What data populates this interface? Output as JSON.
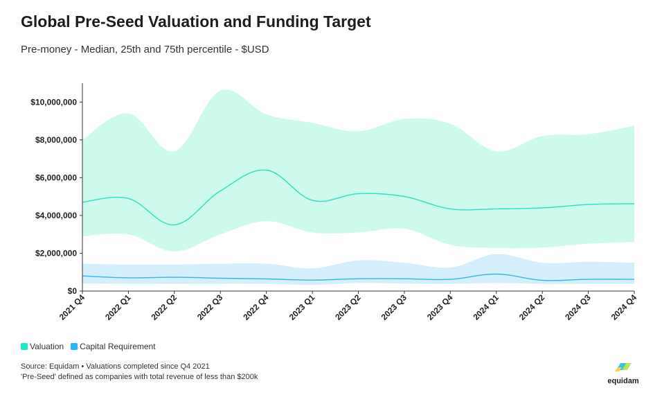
{
  "title": "Global Pre-Seed Valuation and Funding Target",
  "subtitle": "Pre-money - Median, 25th and 75th percentile - $USD",
  "legend": [
    {
      "label": "Valuation",
      "color": "#1de9c6"
    },
    {
      "label": "Capital Requirement",
      "color": "#29b6f6"
    }
  ],
  "source_lines": [
    "Source: Equidam • Valuations completed since Q4 2021",
    "'Pre-Seed' defined as companies with total revenue of less than $200k"
  ],
  "brand": {
    "name": "equidam",
    "colors": [
      "#2ec4f1",
      "#b8e04a",
      "#f5d33a"
    ]
  },
  "chart_data": {
    "type": "area",
    "categories": [
      "2021 Q4",
      "2022 Q1",
      "2022 Q2",
      "2022 Q3",
      "2022 Q4",
      "2023 Q1",
      "2023 Q2",
      "2023 Q3",
      "2023 Q4",
      "2024 Q1",
      "2024 Q2",
      "2024 Q3",
      "2024 Q4"
    ],
    "ylim": [
      0,
      11000000
    ],
    "yticks": [
      0,
      2000000,
      4000000,
      6000000,
      8000000,
      10000000
    ],
    "ytick_labels": [
      "$0",
      "$2,000,000",
      "$4,000,000",
      "$6,000,000",
      "$8,000,000",
      "$10,000,000"
    ],
    "series": [
      {
        "name": "Valuation",
        "band_color": "#cdfaec",
        "line_color": "#2ee0c2",
        "median": [
          4700000,
          4900000,
          3500000,
          5300000,
          6400000,
          4800000,
          5150000,
          5000000,
          4350000,
          4350000,
          4400000,
          4580000,
          4620000
        ],
        "p25": [
          2900000,
          3000000,
          2100000,
          3000000,
          3700000,
          3100000,
          3100000,
          3300000,
          2450000,
          2280000,
          2300000,
          2500000,
          2600000
        ],
        "p75": [
          8000000,
          9400000,
          7400000,
          10600000,
          9350000,
          8900000,
          8450000,
          9100000,
          8850000,
          7400000,
          8200000,
          8300000,
          8750000
        ]
      },
      {
        "name": "Capital Requirement",
        "band_color": "#d4eefc",
        "line_color": "#35b7e6",
        "median": [
          800000,
          700000,
          730000,
          680000,
          640000,
          580000,
          650000,
          650000,
          620000,
          900000,
          570000,
          620000,
          620000
        ],
        "p25": [
          400000,
          380000,
          380000,
          380000,
          380000,
          330000,
          430000,
          400000,
          380000,
          430000,
          380000,
          380000,
          380000
        ],
        "p75": [
          1450000,
          1400000,
          1400000,
          1450000,
          1450000,
          1200000,
          1620000,
          1500000,
          1250000,
          1950000,
          1500000,
          1550000,
          1500000
        ]
      }
    ]
  }
}
